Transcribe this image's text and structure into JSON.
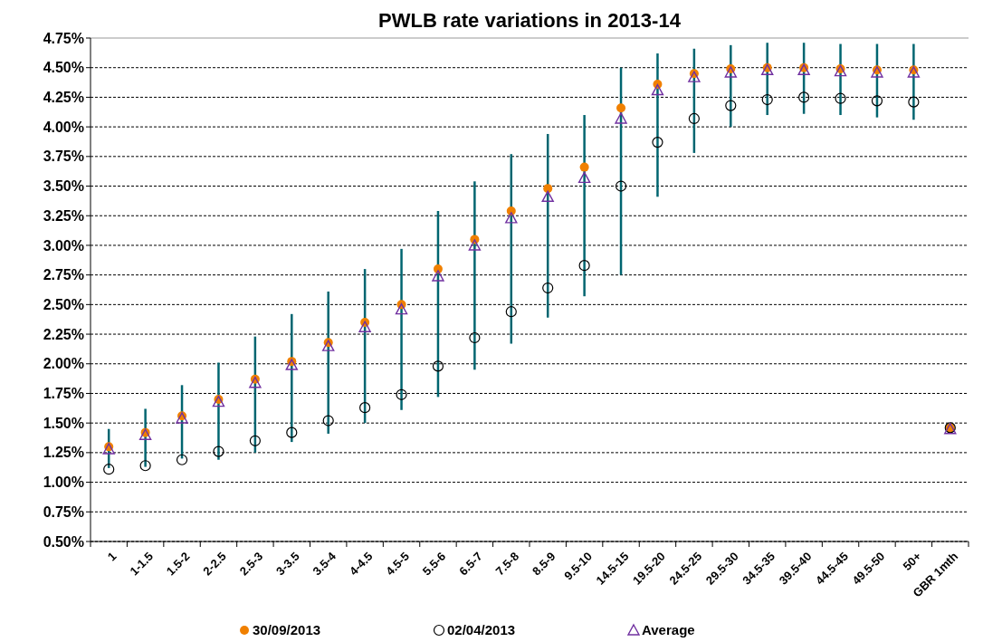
{
  "chart_data": {
    "type": "scatter",
    "title": "PWLB rate variations in 2013-14",
    "categories": [
      "1",
      "1-1.5",
      "1.5-2",
      "2-2.5",
      "2.5-3",
      "3-3.5",
      "3.5-4",
      "4-4.5",
      "4.5-5",
      "5.5-6",
      "6.5-7",
      "7.5-8",
      "8.5-9",
      "9.5-10",
      "14.5-15",
      "19.5-20",
      "24.5-25",
      "29.5-30",
      "34.5-35",
      "39.5-40",
      "44.5-45",
      "49.5-50",
      "50+",
      "GBR 1mth"
    ],
    "ylim": [
      0.5,
      4.75
    ],
    "yticks": [
      {
        "value": 0.5,
        "label": "0.50%"
      },
      {
        "value": 0.75,
        "label": "0.75%"
      },
      {
        "value": 1,
        "label": "1.00%"
      },
      {
        "value": 1.25,
        "label": "1.25%"
      },
      {
        "value": 1.5,
        "label": "1.50%"
      },
      {
        "value": 1.75,
        "label": "1.75%"
      },
      {
        "value": 2,
        "label": "2.00%"
      },
      {
        "value": 2.25,
        "label": "2.25%"
      },
      {
        "value": 2.5,
        "label": "2.50%"
      },
      {
        "value": 2.75,
        "label": "2.75%"
      },
      {
        "value": 3,
        "label": "3.00%"
      },
      {
        "value": 3.25,
        "label": "3.25%"
      },
      {
        "value": 3.5,
        "label": "3.50%"
      },
      {
        "value": 3.75,
        "label": "3.75%"
      },
      {
        "value": 4,
        "label": "4.00%"
      },
      {
        "value": 4.25,
        "label": "4.25%"
      },
      {
        "value": 4.5,
        "label": "4.50%"
      },
      {
        "value": 4.75,
        "label": "4.75%"
      }
    ],
    "grid": "y",
    "legend": "bottom",
    "series": [
      {
        "name": "30/09/2013",
        "color": "#f08000",
        "marker": "circle",
        "values": [
          1.3,
          1.42,
          1.56,
          1.7,
          1.87,
          2.02,
          2.18,
          2.35,
          2.5,
          2.8,
          3.05,
          3.29,
          3.48,
          3.66,
          4.16,
          4.36,
          4.45,
          4.49,
          4.5,
          4.5,
          4.49,
          4.48,
          4.48,
          1.46
        ]
      },
      {
        "name": "02/04/2013",
        "color": "#000000",
        "marker": "circle-open",
        "values": [
          1.11,
          1.14,
          1.19,
          1.26,
          1.35,
          1.42,
          1.52,
          1.63,
          1.74,
          1.98,
          2.22,
          2.44,
          2.64,
          2.83,
          3.5,
          3.87,
          4.07,
          4.18,
          4.23,
          4.25,
          4.24,
          4.22,
          4.21,
          1.46
        ]
      },
      {
        "name": "Average",
        "color": "#7030a0",
        "marker": "triangle",
        "values": [
          1.28,
          1.4,
          1.54,
          1.68,
          1.84,
          1.99,
          2.15,
          2.31,
          2.46,
          2.74,
          3.0,
          3.23,
          3.41,
          3.57,
          4.07,
          4.31,
          4.42,
          4.46,
          4.48,
          4.48,
          4.47,
          4.46,
          4.46,
          1.45
        ],
        "errors": [
          [
            1.12,
            1.45
          ],
          [
            1.13,
            1.62
          ],
          [
            1.2,
            1.82
          ],
          [
            1.19,
            2.01
          ],
          [
            1.25,
            2.23
          ],
          [
            1.34,
            2.42
          ],
          [
            1.41,
            2.61
          ],
          [
            1.5,
            2.8
          ],
          [
            1.61,
            2.97
          ],
          [
            1.72,
            3.29
          ],
          [
            1.95,
            3.54
          ],
          [
            2.17,
            3.77
          ],
          [
            2.39,
            3.94
          ],
          [
            2.57,
            4.1
          ],
          [
            2.75,
            4.5
          ],
          [
            3.41,
            4.62
          ],
          [
            3.78,
            4.66
          ],
          [
            4.0,
            4.69
          ],
          [
            4.1,
            4.71
          ],
          [
            4.11,
            4.71
          ],
          [
            4.1,
            4.7
          ],
          [
            4.08,
            4.7
          ],
          [
            4.06,
            4.7
          ],
          null
        ]
      }
    ]
  }
}
